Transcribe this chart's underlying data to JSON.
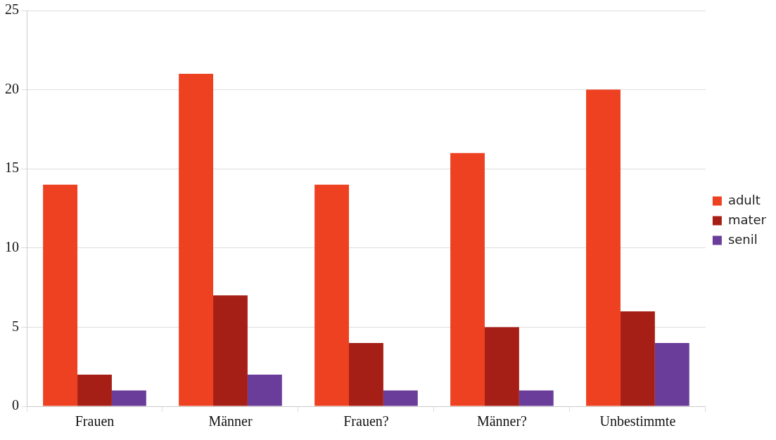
{
  "chart_data": {
    "type": "bar",
    "categories": [
      "Frauen",
      "Männer",
      "Frauen?",
      "Männer?",
      "Unbestimmte"
    ],
    "series": [
      {
        "name": "adult",
        "color": "#ee4122",
        "values": [
          14,
          21,
          14,
          16,
          20
        ]
      },
      {
        "name": "mater",
        "color": "#a61f16",
        "values": [
          2,
          7,
          4,
          5,
          6
        ]
      },
      {
        "name": "senil",
        "color": "#6a3d9a",
        "values": [
          1,
          2,
          1,
          1,
          4
        ]
      }
    ],
    "ylim": [
      0,
      25
    ],
    "yticks": [
      0,
      5,
      10,
      15,
      20,
      25
    ],
    "grid": "y",
    "legend": "right"
  }
}
